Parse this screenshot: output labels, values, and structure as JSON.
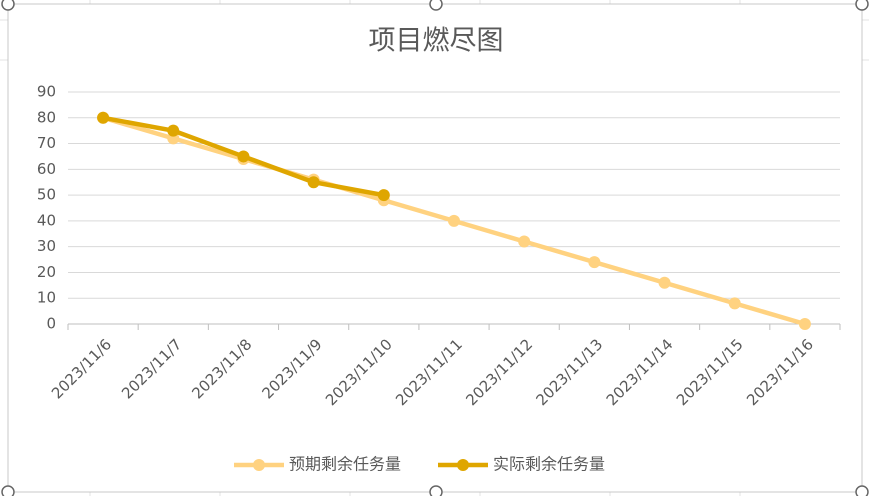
{
  "chart_data": {
    "type": "line",
    "title": "项目燃尽图",
    "categories": [
      "2023/11/6",
      "2023/11/7",
      "2023/11/8",
      "2023/11/9",
      "2023/11/10",
      "2023/11/11",
      "2023/11/12",
      "2023/11/13",
      "2023/11/14",
      "2023/11/15",
      "2023/11/16"
    ],
    "series": [
      {
        "name": "预期剩余任务量",
        "color": "#ffd280",
        "values": [
          80,
          72,
          64,
          56,
          48,
          40,
          32,
          24,
          16,
          8,
          0
        ]
      },
      {
        "name": "实际剩余任务量",
        "color": "#dfa600",
        "values": [
          80,
          75,
          65,
          55,
          50,
          null,
          null,
          null,
          null,
          null,
          null
        ]
      }
    ],
    "ylim": [
      0,
      90
    ],
    "yticks": [
      0,
      10,
      20,
      30,
      40,
      50,
      60,
      70,
      80,
      90
    ],
    "grid": true,
    "legend": "bottom"
  }
}
